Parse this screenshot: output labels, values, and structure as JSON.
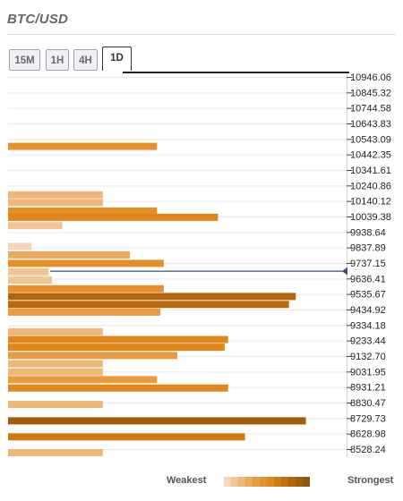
{
  "title": "BTC/USD",
  "tabs": [
    {
      "label": "15M",
      "active": false
    },
    {
      "label": "1H",
      "active": false
    },
    {
      "label": "4H",
      "active": false
    },
    {
      "label": "1D",
      "active": true
    }
  ],
  "legend": {
    "weakest_label": "Weakest",
    "strongest_label": "Strongest",
    "colors": [
      "#f5d6b6",
      "#f2c495",
      "#efb777",
      "#eba95b",
      "#e99c3f",
      "#e6902a",
      "#e0861b",
      "#d27a12",
      "#c26f0f",
      "#b2650c",
      "#a35c09",
      "#955408"
    ]
  },
  "current_price": 9687.0,
  "chart_data": {
    "type": "bar",
    "orientation": "horizontal",
    "title": "BTC/USD",
    "timeframe": "1D",
    "ticks": [
      "10946.06",
      "10845.32",
      "10744.58",
      "10643.83",
      "10543.09",
      "10442.35",
      "10341.61",
      "10240.86",
      "10140.12",
      "10039.38",
      "9938.64",
      "9837.89",
      "9737.15",
      "9636.41",
      "9535.67",
      "9434.92",
      "9334.18",
      "9233.44",
      "9132.70",
      "9031.95",
      "8931.21",
      "8830.47",
      "8729.73",
      "8628.98",
      "8528.24"
    ],
    "ylim": [
      8500,
      10960
    ],
    "xlim": [
      0,
      100
    ],
    "bars": [
      {
        "price": 10495,
        "strength": 44,
        "color": "#e6902a"
      },
      {
        "price": 10180,
        "strength": 28,
        "color": "#f0b678"
      },
      {
        "price": 10130,
        "strength": 28,
        "color": "#f0b678"
      },
      {
        "price": 10075,
        "strength": 44,
        "color": "#e6902a"
      },
      {
        "price": 10034,
        "strength": 62,
        "color": "#e0861b"
      },
      {
        "price": 9980,
        "strength": 16,
        "color": "#f2c495"
      },
      {
        "price": 9845,
        "strength": 7,
        "color": "#f5d6b6"
      },
      {
        "price": 9790,
        "strength": 36,
        "color": "#eba95b"
      },
      {
        "price": 9735,
        "strength": 46,
        "color": "#e6902a"
      },
      {
        "price": 9680,
        "strength": 12,
        "color": "#f2c495"
      },
      {
        "price": 9626,
        "strength": 13,
        "color": "#f2c495"
      },
      {
        "price": 9570,
        "strength": 46,
        "color": "#e6902a"
      },
      {
        "price": 9520,
        "strength": 85,
        "color": "#b2650c"
      },
      {
        "price": 9468,
        "strength": 83,
        "color": "#b86a0e"
      },
      {
        "price": 9418,
        "strength": 45,
        "color": "#e99c3f"
      },
      {
        "price": 9290,
        "strength": 28,
        "color": "#f0b678"
      },
      {
        "price": 9240,
        "strength": 65,
        "color": "#e0861b"
      },
      {
        "price": 9190,
        "strength": 64,
        "color": "#e0861b"
      },
      {
        "price": 9137,
        "strength": 50,
        "color": "#e99c3f"
      },
      {
        "price": 9083,
        "strength": 28,
        "color": "#f0b678"
      },
      {
        "price": 9030,
        "strength": 28,
        "color": "#f0b678"
      },
      {
        "price": 8980,
        "strength": 44,
        "color": "#e99c3f"
      },
      {
        "price": 8925,
        "strength": 65,
        "color": "#e0861b"
      },
      {
        "price": 8818,
        "strength": 28,
        "color": "#f0b678"
      },
      {
        "price": 8712,
        "strength": 88,
        "color": "#a35c09"
      },
      {
        "price": 8608,
        "strength": 70,
        "color": "#d27a12"
      },
      {
        "price": 8505,
        "strength": 28,
        "color": "#f0b678"
      }
    ]
  }
}
